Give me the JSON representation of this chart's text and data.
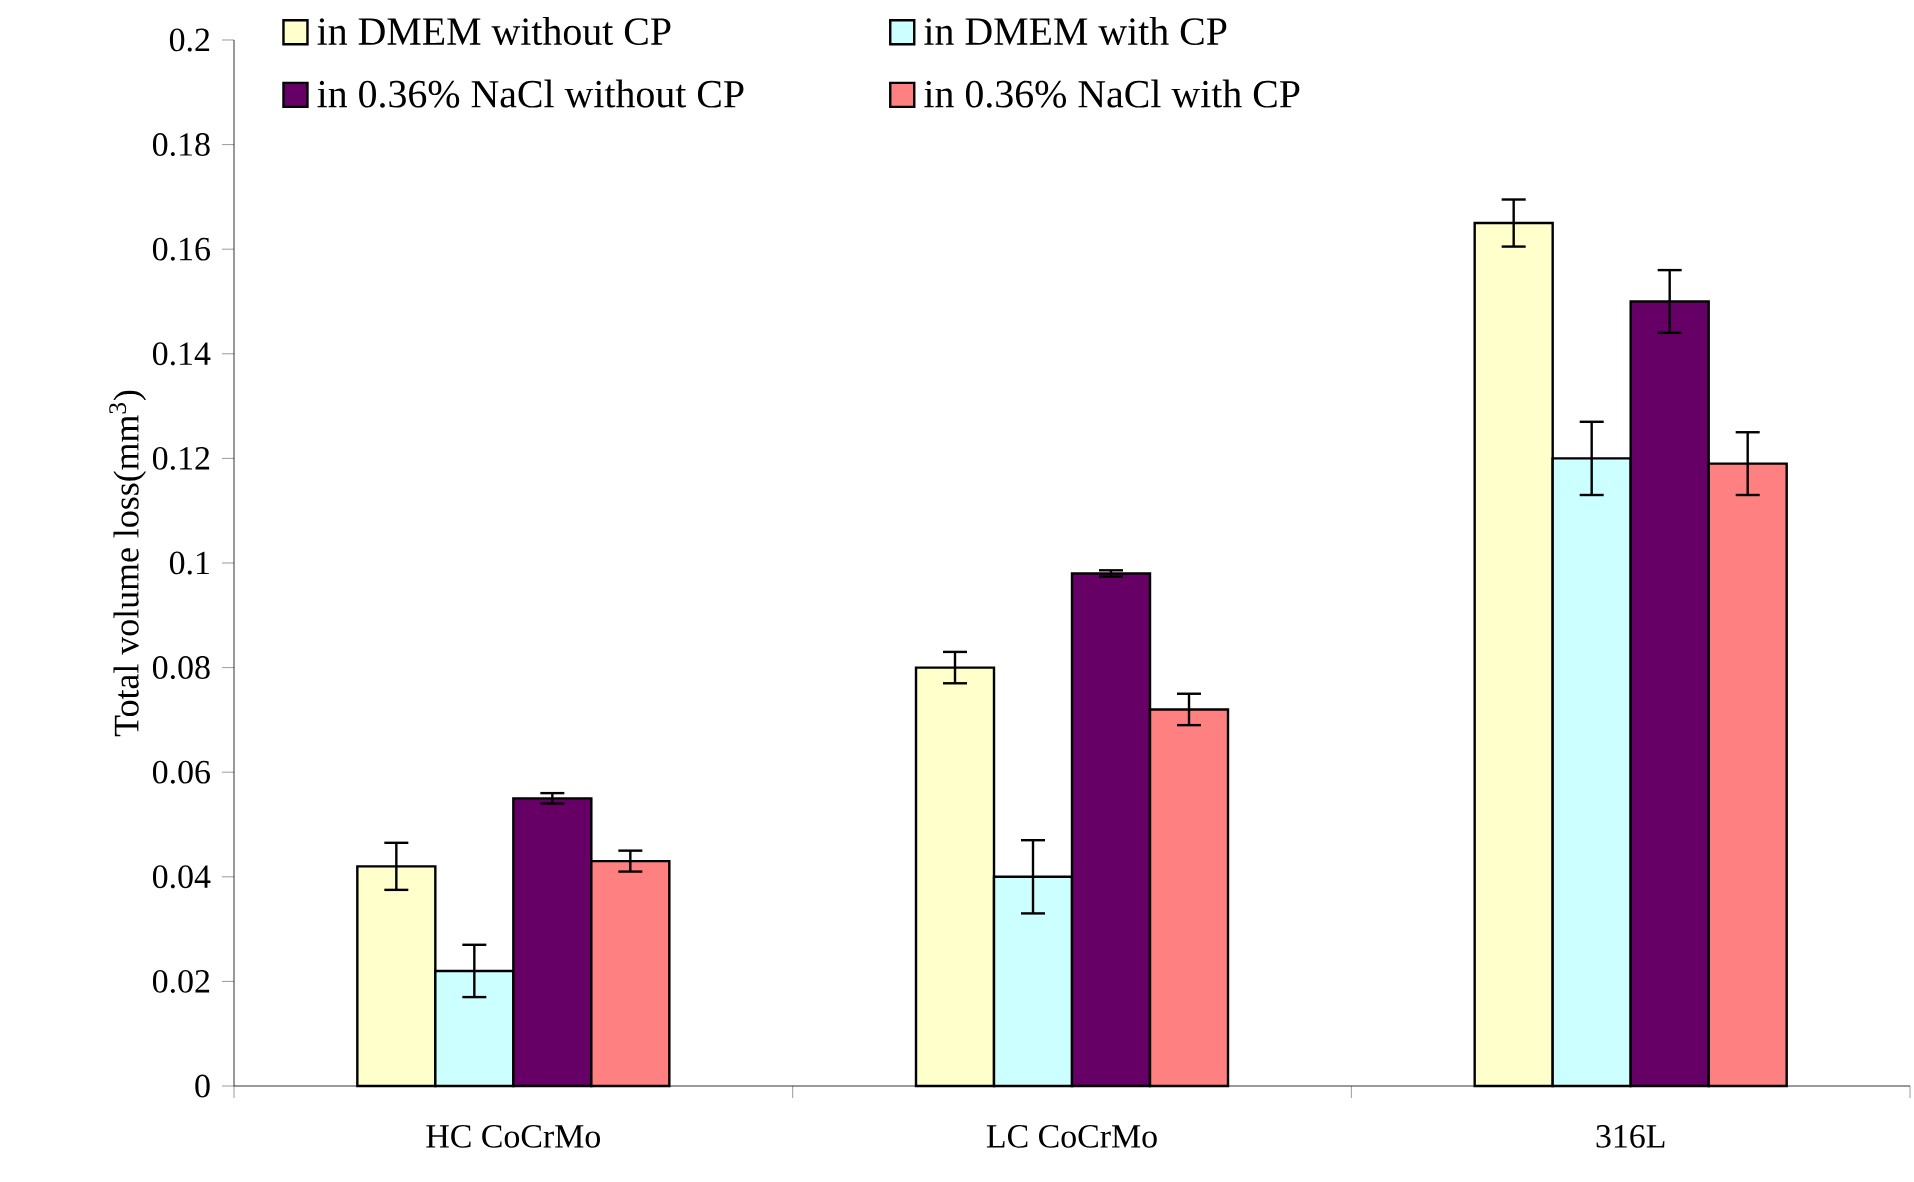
{
  "chart_data": {
    "type": "bar",
    "ylabel": "Total volume loss(mm$^{3}$)",
    "categories": [
      "HC CoCrMo",
      "LC CoCrMo",
      "316L"
    ],
    "series": [
      {
        "name": "in DMEM without CP",
        "color": "#ffffcc",
        "values": [
          0.042,
          0.08,
          0.165
        ],
        "errors": [
          0.0045,
          0.003,
          0.0045
        ]
      },
      {
        "name": "in DMEM with CP",
        "color": "#ccffff",
        "values": [
          0.022,
          0.04,
          0.12
        ],
        "errors": [
          0.005,
          0.007,
          0.007
        ]
      },
      {
        "name": "in 0.36% NaCl without CP",
        "color": "#660066",
        "values": [
          0.055,
          0.098,
          0.15
        ],
        "errors": [
          0.001,
          0.0006,
          0.006
        ]
      },
      {
        "name": "in 0.36% NaCl with CP",
        "color": "#ff8080",
        "values": [
          0.043,
          0.072,
          0.119
        ],
        "errors": [
          0.002,
          0.003,
          0.006
        ]
      }
    ],
    "ylim": [
      0,
      0.2
    ],
    "yticks": [
      0,
      0.02,
      0.04,
      0.06,
      0.08,
      0.1,
      0.12,
      0.14,
      0.16,
      0.18,
      0.2
    ],
    "legend": "top",
    "grid": false
  }
}
